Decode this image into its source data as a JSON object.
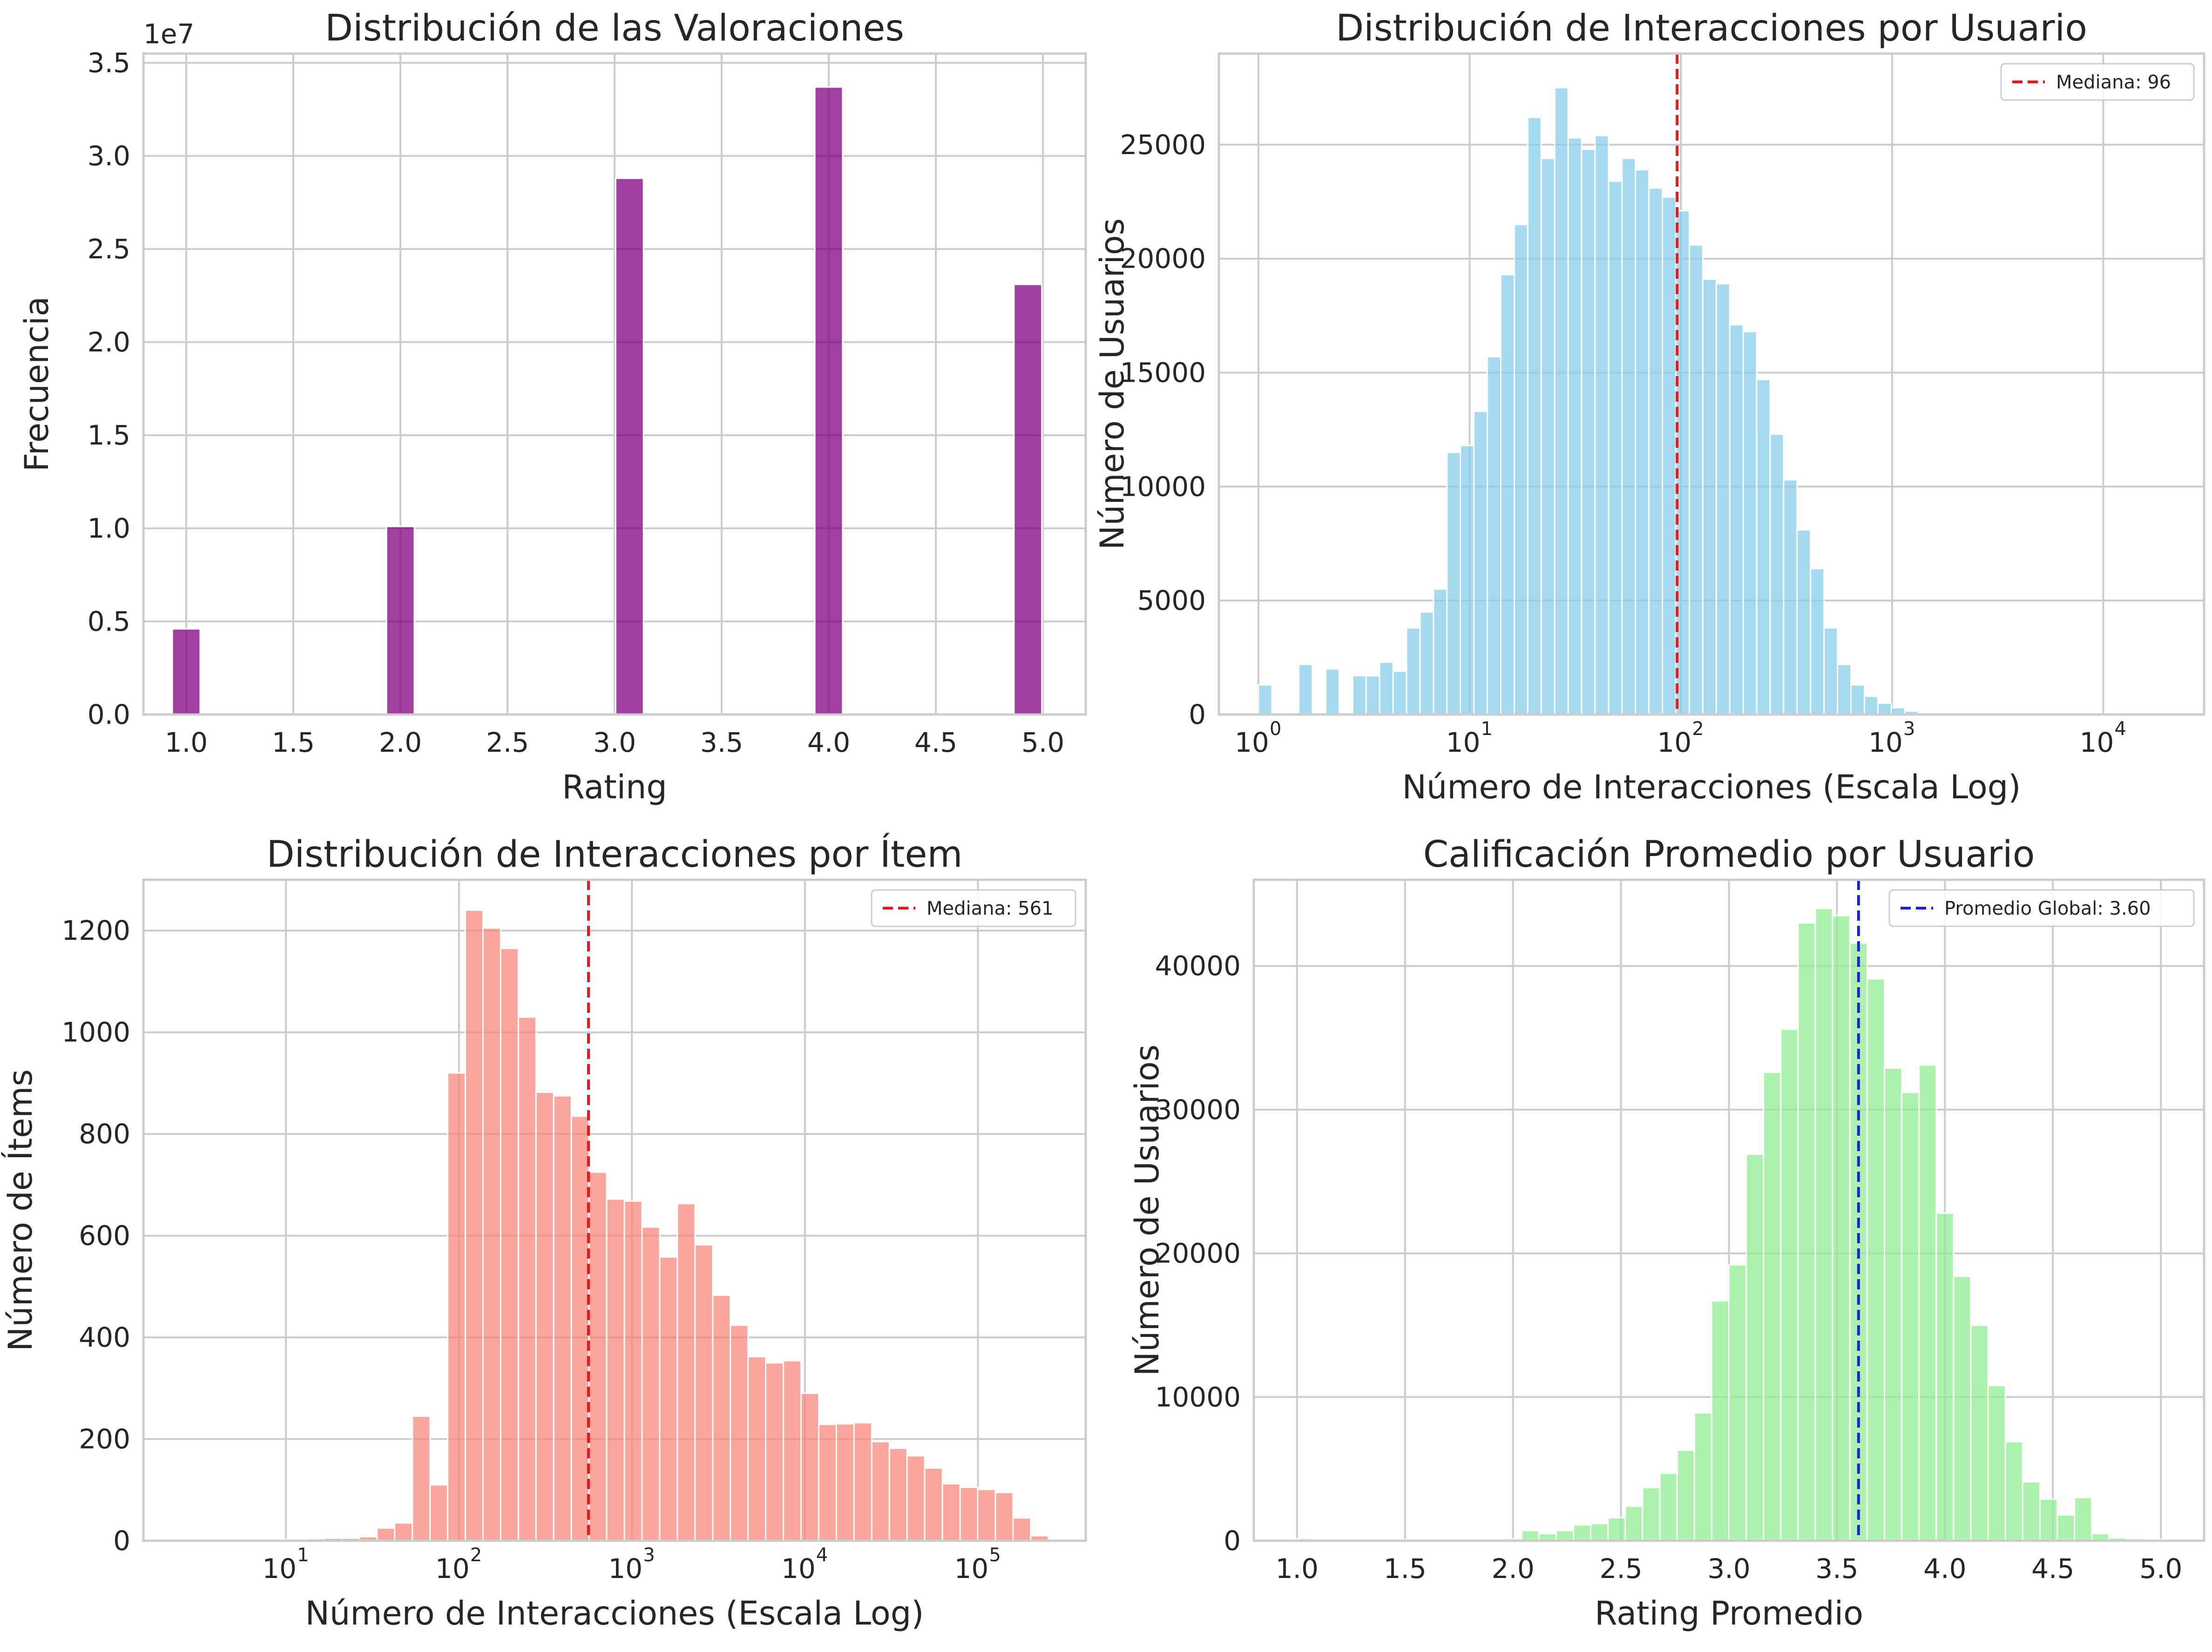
{
  "chart_data": [
    {
      "type": "bar",
      "title": "Distribución de las Valoraciones",
      "xlabel": "Rating",
      "ylabel": "Frecuencia",
      "offset_label": "1e7",
      "xlim": [
        0.8,
        5.2
      ],
      "ylim": [
        0,
        3.55
      ],
      "xticks": [
        1.0,
        1.5,
        2.0,
        2.5,
        3.0,
        3.5,
        4.0,
        4.5,
        5.0
      ],
      "xtick_labels": [
        "1.0",
        "1.5",
        "2.0",
        "2.5",
        "3.0",
        "3.5",
        "4.0",
        "4.5",
        "5.0"
      ],
      "yticks": [
        0,
        0.5,
        1.0,
        1.5,
        2.0,
        2.5,
        3.0,
        3.5
      ],
      "ytick_labels": [
        "0.0",
        "0.5",
        "1.0",
        "1.5",
        "2.0",
        "2.5",
        "3.0",
        "3.5"
      ],
      "bin_width": 0.13,
      "x": [
        1.0,
        2.0,
        3.07,
        4.0,
        4.93
      ],
      "values": [
        0.46,
        1.01,
        2.88,
        3.37,
        2.31
      ],
      "color": "#800080",
      "grid": true
    },
    {
      "type": "bar",
      "title": "Distribución de Interacciones por Usuario",
      "xlabel": "Número de Interacciones (Escala Log)",
      "ylabel": "Número de Usuarios",
      "xscale": "log",
      "xlim": [
        0.65,
        30000
      ],
      "ylim": [
        0,
        29000
      ],
      "xticks": [
        1,
        10,
        100,
        1000,
        10000
      ],
      "xtick_labels": [
        "10",
        "10",
        "10",
        "10",
        "10"
      ],
      "xtick_exponents": [
        "0",
        "1",
        "2",
        "3",
        "4"
      ],
      "yticks": [
        0,
        5000,
        10000,
        15000,
        20000,
        25000
      ],
      "ytick_labels": [
        "0",
        "5000",
        "10000",
        "15000",
        "20000",
        "25000"
      ],
      "bin_edges": [
        1,
        1.158,
        1.341,
        1.553,
        1.799,
        2.083,
        2.412,
        2.794,
        3.236,
        3.747,
        4.34,
        5.026,
        5.821,
        6.742,
        7.808,
        9.043,
        10.47,
        12.13,
        14.05,
        16.27,
        18.84,
        21.82,
        25.27,
        29.27,
        33.89,
        39.25,
        45.46,
        52.65,
        60.97,
        70.61,
        81.78,
        94.71,
        109.7,
        127.0,
        147.1,
        170.4,
        197.3,
        228.5,
        264.6,
        306.5,
        354.9,
        411.1,
        476.1,
        551.4,
        638.6,
        739.5,
        856.5,
        991.9,
        1148.8,
        1330.4,
        1540.8,
        1784.4,
        2066.6,
        2393.4,
        2771.8,
        3210.1,
        3717.7,
        4305.6,
        4986.5,
        5775.0,
        6688.2,
        7745.9,
        8970.8,
        10389,
        12032,
        13935,
        16138
      ],
      "values": [
        1300,
        0,
        0,
        2200,
        0,
        2000,
        0,
        1700,
        1700,
        2300,
        1900,
        3800,
        4500,
        5500,
        11500,
        11800,
        13300,
        15700,
        19300,
        21500,
        26200,
        24400,
        27500,
        25300,
        24800,
        25400,
        23400,
        24400,
        23900,
        23100,
        22700,
        22100,
        20600,
        19100,
        18900,
        17100,
        16800,
        14700,
        12300,
        10300,
        8100,
        6400,
        3800,
        2200,
        1300,
        800,
        500,
        300,
        150,
        80,
        50,
        30,
        20,
        10,
        5,
        3,
        2,
        1,
        1,
        1,
        1,
        1,
        1,
        1,
        1,
        1
      ],
      "color": "#87ceeb",
      "vline": {
        "x": 96,
        "color": "#e41a1c",
        "label": "Mediana: 96"
      },
      "legend_position": "top-right",
      "grid": true
    },
    {
      "type": "bar",
      "title": "Distribución de Interacciones por Ítem",
      "xlabel": "Número de Interacciones (Escala Log)",
      "ylabel": "Número de Ítems",
      "xscale": "log",
      "xlim": [
        1.5,
        420000
      ],
      "ylim": [
        0,
        1300
      ],
      "xticks": [
        10,
        100,
        1000,
        10000,
        100000
      ],
      "xtick_labels": [
        "10",
        "10",
        "10",
        "10",
        "10"
      ],
      "xtick_exponents": [
        "1",
        "2",
        "3",
        "4",
        "5"
      ],
      "yticks": [
        0,
        200,
        400,
        600,
        800,
        1000,
        1200
      ],
      "ytick_labels": [
        "0",
        "200",
        "400",
        "600",
        "800",
        "1000",
        "1200"
      ],
      "bin_edges": [
        2.0,
        2.53,
        3.2,
        4.05,
        5.12,
        6.48,
        8.2,
        10.37,
        13.12,
        16.6,
        21.0,
        26.6,
        33.6,
        42.5,
        53.8,
        68.1,
        86.1,
        108.9,
        137.8,
        174.3,
        220.6,
        279.0,
        353.0,
        446.6,
        565.0,
        714.8,
        904.3,
        1144,
        1447,
        1831,
        2317,
        2931,
        3708,
        4691,
        5934,
        7508,
        9498,
        12016,
        15202,
        19232,
        24331,
        30782,
        38943,
        49267,
        62328,
        78853,
        99757,
        126204,
        159662,
        201990,
        255539
      ],
      "values": [
        2,
        2,
        2,
        2,
        2,
        2,
        3,
        3,
        4,
        5,
        5,
        8,
        25,
        35,
        245,
        110,
        920,
        1240,
        1205,
        1165,
        1030,
        882,
        875,
        835,
        725,
        672,
        668,
        617,
        558,
        663,
        582,
        483,
        424,
        362,
        350,
        354,
        290,
        229,
        230,
        232,
        195,
        182,
        167,
        143,
        112,
        105,
        101,
        95,
        45,
        10
      ],
      "color": "#fa8072",
      "vline": {
        "x": 561,
        "color": "#e41a1c",
        "label": "Mediana: 561"
      },
      "legend_position": "top-right",
      "grid": true
    },
    {
      "type": "bar",
      "title": "Calificación Promedio por Usuario",
      "xlabel": "Rating Promedio",
      "ylabel": "Número de Usuarios",
      "xlim": [
        0.8,
        5.2
      ],
      "ylim": [
        0,
        46000
      ],
      "xticks": [
        1.0,
        1.5,
        2.0,
        2.5,
        3.0,
        3.5,
        4.0,
        4.5,
        5.0
      ],
      "xtick_labels": [
        "1.0",
        "1.5",
        "2.0",
        "2.5",
        "3.0",
        "3.5",
        "4.0",
        "4.5",
        "5.0"
      ],
      "yticks": [
        0,
        10000,
        20000,
        30000,
        40000
      ],
      "ytick_labels": [
        "0",
        "10000",
        "20000",
        "30000",
        "40000"
      ],
      "bin_edges": [
        1.0,
        1.08,
        1.16,
        1.24,
        1.32,
        1.4,
        1.48,
        1.56,
        1.64,
        1.72,
        1.8,
        1.88,
        1.96,
        2.04,
        2.12,
        2.2,
        2.28,
        2.36,
        2.44,
        2.52,
        2.6,
        2.68,
        2.76,
        2.84,
        2.92,
        3.0,
        3.08,
        3.16,
        3.24,
        3.32,
        3.4,
        3.48,
        3.56,
        3.64,
        3.72,
        3.8,
        3.88,
        3.96,
        4.04,
        4.12,
        4.2,
        4.28,
        4.36,
        4.44,
        4.52,
        4.6,
        4.68,
        4.76,
        4.84,
        4.92,
        5.0
      ],
      "values": [
        150,
        60,
        60,
        60,
        60,
        60,
        60,
        60,
        60,
        60,
        80,
        120,
        150,
        700,
        500,
        700,
        1100,
        1200,
        1600,
        2400,
        3700,
        4700,
        6300,
        8900,
        16700,
        19200,
        26900,
        32600,
        35600,
        43000,
        44000,
        43500,
        41600,
        39100,
        32900,
        31200,
        33100,
        22800,
        18400,
        15000,
        10800,
        6900,
        4100,
        2900,
        1800,
        3000,
        500,
        200,
        150,
        100
      ],
      "color": "#90ee90",
      "vline": {
        "x": 3.6,
        "color": "#1f1fd6",
        "label": "Promedio Global: 3.60"
      },
      "legend_position": "top-right",
      "grid": true
    }
  ]
}
